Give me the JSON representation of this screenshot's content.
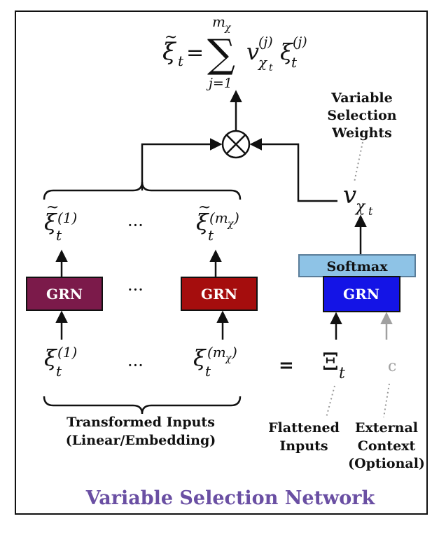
{
  "title": "Variable Selection Network",
  "formula": {
    "lhs": "ξ",
    "lhs_sub": "t",
    "equals": "=",
    "sum_upper": "m",
    "sum_upper_sub": "χ",
    "sum_lower": "j=1",
    "v": "v",
    "v_sub": "χ",
    "v_subsub": "t",
    "v_sup": "(j)",
    "xi": "ξ",
    "xi_sub": "t",
    "xi_sup": "(j)"
  },
  "weights_label": [
    "Variable",
    "Selection",
    "Weights"
  ],
  "v_chi_t": {
    "base": "v",
    "sub": "χ",
    "subsub": "t"
  },
  "outputs": [
    {
      "base": "ξ",
      "sub": "t",
      "sup": "(1)"
    },
    {
      "base": "ξ",
      "sub": "t",
      "sup": "(m",
      "sup_sub": "χ",
      "sup_close": ")"
    }
  ],
  "ellipsis": "···",
  "grn_label": "GRN",
  "softmax_label": "Softmax",
  "inputs": [
    {
      "base": "ξ",
      "sub": "t",
      "sup": "(1)"
    },
    {
      "base": "ξ",
      "sub": "t",
      "sup": "(m",
      "sup_sub": "χ",
      "sup_close": ")"
    }
  ],
  "equals": "=",
  "Xi_t": {
    "base": "Ξ",
    "sub": "t"
  },
  "context_symbol": "c",
  "transformed_label": [
    "Transformed Inputs",
    "(Linear/Embedding)"
  ],
  "flattened_label": [
    "Flattened",
    "Inputs"
  ],
  "external_label": [
    "External",
    "Context",
    "(Optional)"
  ],
  "colors": {
    "grn_1": "#7b1a4a",
    "grn_m": "#a50d0d",
    "grn_selection": "#1414e6",
    "softmax": "#8ec3e6",
    "title": "#6a4fa3",
    "context_arrow": "#a0a0a0"
  }
}
